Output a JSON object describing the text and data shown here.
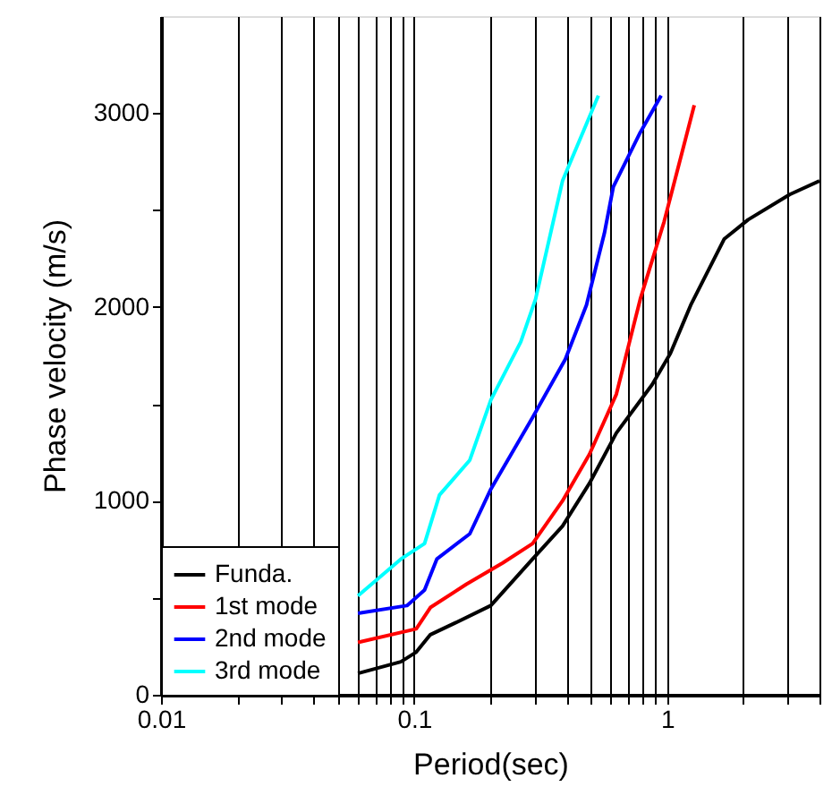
{
  "chart_data": {
    "type": "line",
    "xlabel": "Period(sec)",
    "ylabel": "Phase velocity (m/s)",
    "log": "x",
    "grid": "x",
    "legend": "bottom left",
    "line_style": "solid",
    "marker": "none",
    "xlim": [
      0.01,
      4
    ],
    "ylim": [
      0,
      3500
    ],
    "xticks": [
      0.01,
      {
        "value": 0.02,
        "label": null
      },
      {
        "value": 0.03,
        "label": null
      },
      {
        "value": 0.04,
        "label": null
      },
      {
        "value": 0.05,
        "label": null
      },
      {
        "value": 0.06,
        "label": null
      },
      {
        "value": 0.07,
        "label": null
      },
      {
        "value": 0.08,
        "label": null
      },
      {
        "value": 0.09,
        "label": null
      },
      0.1,
      {
        "value": 0.2,
        "label": null
      },
      {
        "value": 0.3,
        "label": null
      },
      {
        "value": 0.4,
        "label": null
      },
      {
        "value": 0.5,
        "label": null
      },
      {
        "value": 0.6,
        "label": null
      },
      {
        "value": 0.7,
        "label": null
      },
      {
        "value": 0.8,
        "label": null
      },
      {
        "value": 0.9,
        "label": null
      },
      1,
      {
        "value": 2,
        "label": null
      },
      {
        "value": 3,
        "label": null
      },
      {
        "value": 4,
        "label": null
      }
    ],
    "yticks": [
      0,
      {
        "value": 500,
        "label": null
      },
      1000,
      {
        "value": 1500,
        "label": null
      },
      2000,
      {
        "value": 2500,
        "label": null
      },
      3000
    ],
    "series": [
      {
        "name": "Funda.",
        "color": "#000000",
        "x": [
          0.06,
          0.0887,
          0.102,
          0.116,
          0.145,
          0.201,
          0.294,
          0.386,
          0.493,
          0.63,
          0.873,
          1.03,
          1.24,
          1.68,
          2.09,
          3.05,
          4.0
        ],
        "values": [
          110,
          170,
          220,
          310,
          370,
          460,
          700,
          870,
          1090,
          1350,
          1600,
          1760,
          2010,
          2350,
          2450,
          2580,
          2650
        ]
      },
      {
        "name": "1st mode",
        "color": "#ff0000",
        "x": [
          0.06,
          0.102,
          0.116,
          0.161,
          0.224,
          0.294,
          0.386,
          0.493,
          0.63,
          0.783,
          0.973,
          1.28
        ],
        "values": [
          270,
          340,
          450,
          570,
          680,
          780,
          1000,
          1240,
          1550,
          2040,
          2440,
          3040
        ]
      },
      {
        "name": "2nd mode",
        "color": "#0000ff",
        "x": [
          0.06,
          0.0937,
          0.11,
          0.123,
          0.166,
          0.201,
          0.294,
          0.396,
          0.48,
          0.565,
          0.613,
          0.783,
          0.947
        ],
        "values": [
          420,
          460,
          540,
          700,
          830,
          1060,
          1430,
          1730,
          2010,
          2380,
          2620,
          2900,
          3090
        ]
      },
      {
        "name": "3rd mode",
        "color": "#00ffff",
        "x": [
          0.06,
          0.0887,
          0.11,
          0.126,
          0.166,
          0.201,
          0.264,
          0.302,
          0.386,
          0.535
        ],
        "values": [
          510,
          700,
          780,
          1030,
          1210,
          1520,
          1820,
          2040,
          2650,
          3090
        ]
      }
    ]
  }
}
